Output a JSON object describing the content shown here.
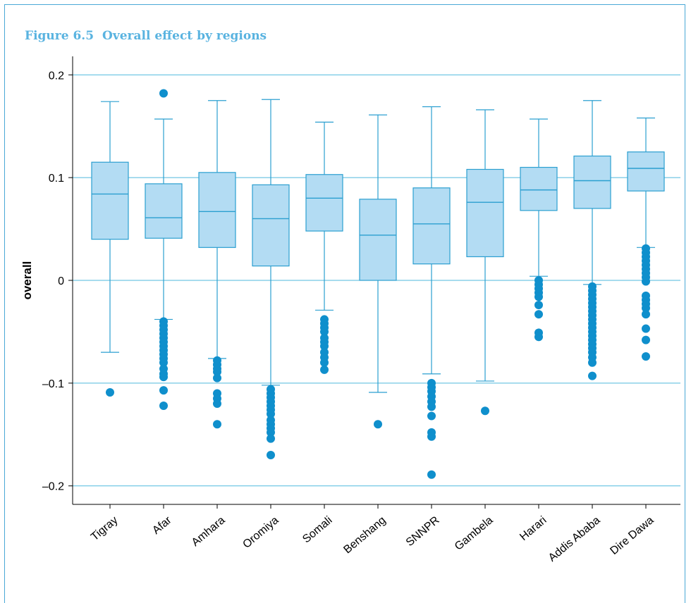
{
  "figure": {
    "number": "Figure 6.5",
    "title": "Overall effect by regions"
  },
  "colors": {
    "box_fill": "#b3dcf3",
    "line": "#2b9fd0",
    "grid": "#4fb9dd",
    "outlier": "#0f8fcc",
    "title": "#59b3e0"
  },
  "chart_data": {
    "type": "box",
    "ylabel": "overall",
    "ylim": [
      -0.218,
      0.218
    ],
    "yticks": [
      -0.2,
      -0.1,
      0,
      0.1,
      0.2
    ],
    "ytick_labels": [
      "–0.2",
      "–0.1",
      "0",
      "0.1",
      "0.2"
    ],
    "grid": "horizontal",
    "categories": [
      "Tigray",
      "Afar",
      "Amhara",
      "Oromiya",
      "Somali",
      "Benshang",
      "SNNPR",
      "Gambela",
      "Harari",
      "Addis Ababa",
      "Dire Dawa"
    ],
    "boxes": [
      {
        "category": "Tigray",
        "whisker_low": -0.07,
        "q1": 0.04,
        "median": 0.084,
        "q3": 0.115,
        "whisker_high": 0.174,
        "outliers": [
          -0.109
        ]
      },
      {
        "category": "Afar",
        "whisker_low": -0.038,
        "q1": 0.041,
        "median": 0.061,
        "q3": 0.094,
        "whisker_high": 0.157,
        "outliers": [
          0.182,
          -0.04,
          -0.044,
          -0.048,
          -0.052,
          -0.056,
          -0.06,
          -0.064,
          -0.068,
          -0.072,
          -0.076,
          -0.08,
          -0.086,
          -0.091,
          -0.094,
          -0.107,
          -0.122
        ]
      },
      {
        "category": "Amhara",
        "whisker_low": -0.076,
        "q1": 0.032,
        "median": 0.067,
        "q3": 0.105,
        "whisker_high": 0.175,
        "outliers": [
          -0.078,
          -0.082,
          -0.086,
          -0.089,
          -0.095,
          -0.11,
          -0.115,
          -0.12,
          -0.14
        ]
      },
      {
        "category": "Oromiya",
        "whisker_low": -0.102,
        "q1": 0.014,
        "median": 0.06,
        "q3": 0.093,
        "whisker_high": 0.176,
        "outliers": [
          -0.106,
          -0.11,
          -0.114,
          -0.118,
          -0.122,
          -0.126,
          -0.13,
          -0.136,
          -0.14,
          -0.144,
          -0.148,
          -0.154,
          -0.17
        ]
      },
      {
        "category": "Somali",
        "whisker_low": -0.029,
        "q1": 0.048,
        "median": 0.08,
        "q3": 0.103,
        "whisker_high": 0.154,
        "outliers": [
          -0.038,
          -0.042,
          -0.046,
          -0.05,
          -0.056,
          -0.06,
          -0.064,
          -0.07,
          -0.075,
          -0.08,
          -0.087
        ]
      },
      {
        "category": "Benshang",
        "whisker_low": -0.109,
        "q1": 0.0,
        "median": 0.044,
        "q3": 0.079,
        "whisker_high": 0.161,
        "outliers": [
          -0.14
        ]
      },
      {
        "category": "SNNPR",
        "whisker_low": -0.091,
        "q1": 0.016,
        "median": 0.055,
        "q3": 0.09,
        "whisker_high": 0.169,
        "outliers": [
          -0.1,
          -0.104,
          -0.108,
          -0.113,
          -0.118,
          -0.123,
          -0.132,
          -0.148,
          -0.152,
          -0.189
        ]
      },
      {
        "category": "Gambela",
        "whisker_low": -0.098,
        "q1": 0.023,
        "median": 0.076,
        "q3": 0.108,
        "whisker_high": 0.166,
        "outliers": [
          -0.127
        ]
      },
      {
        "category": "Harari",
        "whisker_low": 0.004,
        "q1": 0.068,
        "median": 0.088,
        "q3": 0.11,
        "whisker_high": 0.157,
        "outliers": [
          0.0,
          -0.004,
          -0.008,
          -0.012,
          -0.016,
          -0.024,
          -0.033,
          -0.051,
          -0.055
        ]
      },
      {
        "category": "Addis Ababa",
        "whisker_low": -0.004,
        "q1": 0.07,
        "median": 0.097,
        "q3": 0.121,
        "whisker_high": 0.175,
        "outliers": [
          -0.006,
          -0.01,
          -0.014,
          -0.018,
          -0.022,
          -0.026,
          -0.03,
          -0.034,
          -0.038,
          -0.042,
          -0.046,
          -0.05,
          -0.054,
          -0.058,
          -0.062,
          -0.066,
          -0.07,
          -0.075,
          -0.08,
          -0.093
        ]
      },
      {
        "category": "Dire Dawa",
        "whisker_low": 0.032,
        "q1": 0.087,
        "median": 0.109,
        "q3": 0.125,
        "whisker_high": 0.158,
        "outliers": [
          0.031,
          0.027,
          0.023,
          0.019,
          0.015,
          0.011,
          0.007,
          0.003,
          -0.001,
          -0.015,
          -0.019,
          -0.023,
          -0.027,
          -0.033,
          -0.047,
          -0.058,
          -0.074
        ]
      }
    ]
  }
}
